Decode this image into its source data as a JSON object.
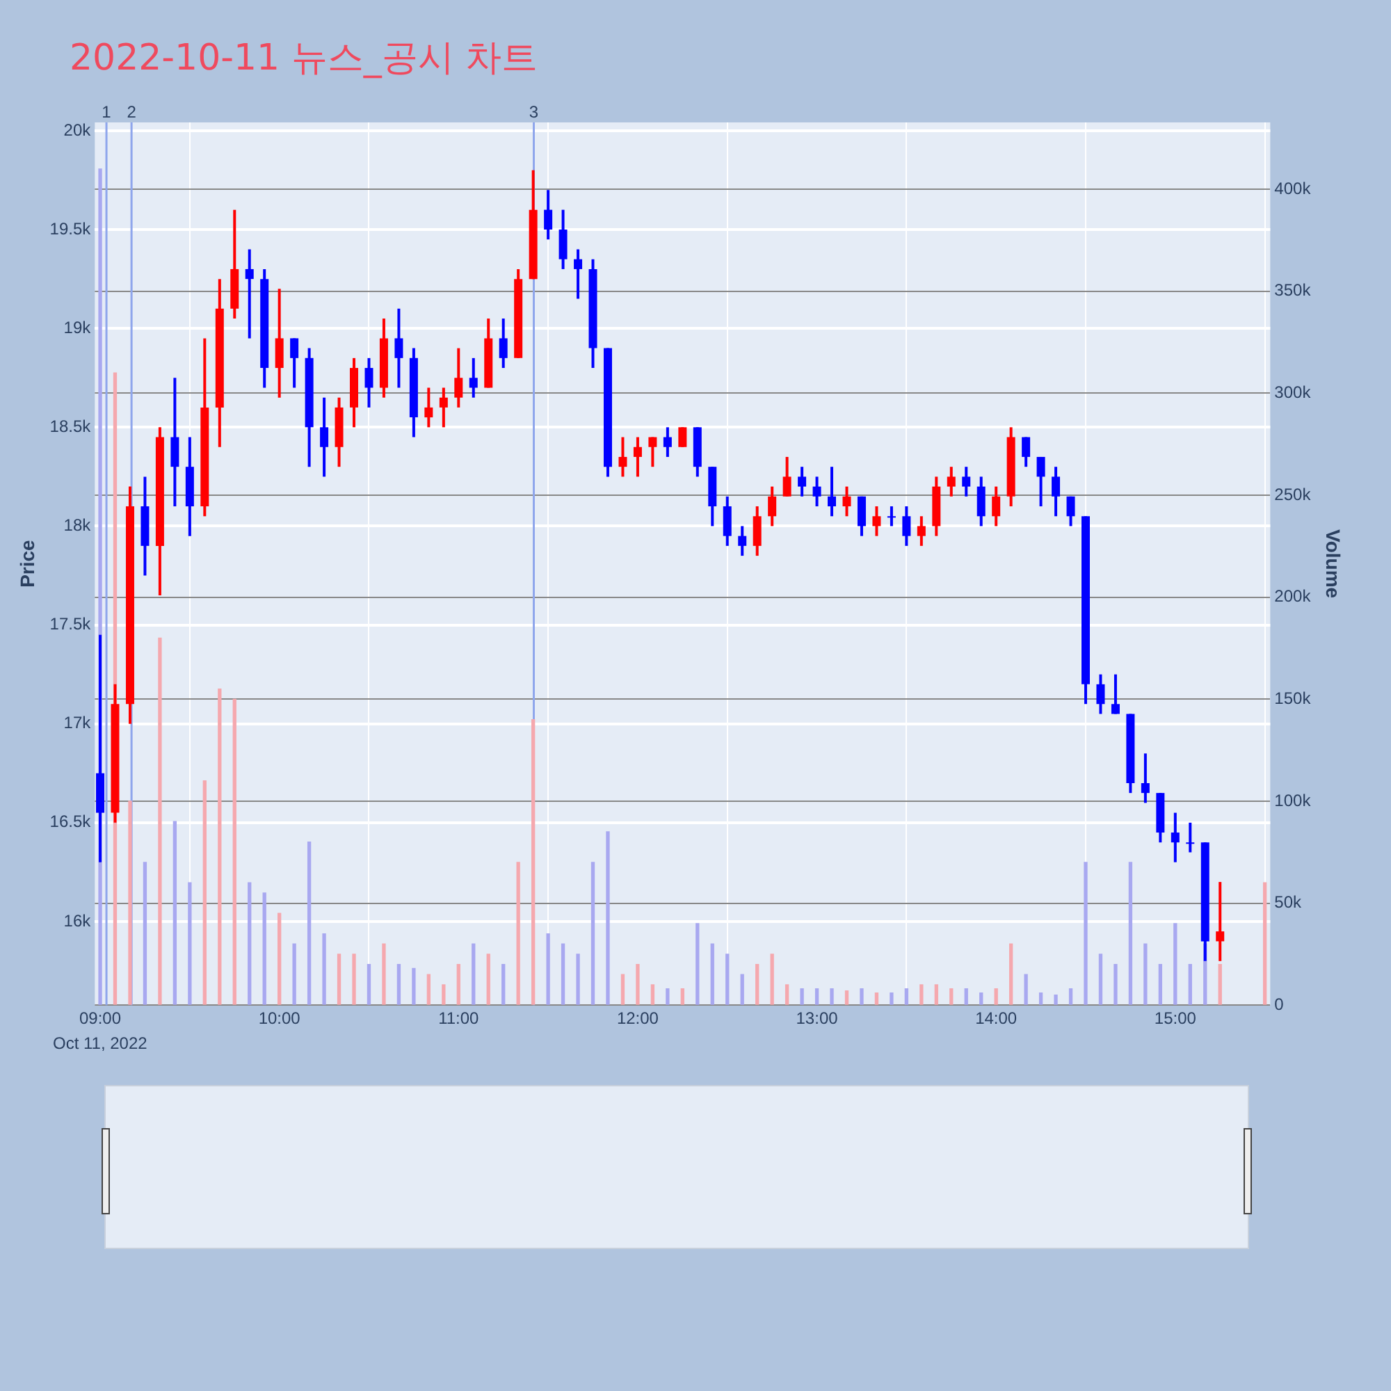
{
  "chart_data": {
    "type": "candlestick",
    "title": "2022-10-11 뉴스_공시 차트",
    "ylabel": "Price",
    "y2label": "Volume",
    "annotations": [
      "1",
      "2",
      "3",
      "Oct 11, 2022"
    ],
    "x": [
      9,
      9.0833,
      9.1667,
      9.25,
      9.3333,
      9.4167,
      9.5,
      9.5833,
      9.6667,
      9.75,
      9.8333,
      9.9167,
      10,
      10.0833,
      10.1667,
      10.25,
      10.3333,
      10.4167,
      10.5,
      10.5833,
      10.6667,
      10.75,
      10.8333,
      10.9167,
      11,
      11.0833,
      11.1667,
      11.25,
      11.3333,
      11.4167,
      11.5,
      11.5833,
      11.6667,
      11.75,
      11.8333,
      11.9167,
      12,
      12.0833,
      12.1667,
      12.25,
      12.3333,
      12.4167,
      12.5,
      12.5833,
      12.6667,
      12.75,
      12.8333,
      12.9167,
      13,
      13.0833,
      13.1667,
      13.25,
      13.3333,
      13.4167,
      13.5,
      13.5833,
      13.6667,
      13.75,
      13.8333,
      13.9167,
      14,
      14.0833,
      14.1667,
      14.25,
      14.3333,
      14.4167,
      14.5,
      14.5833,
      14.6667,
      14.75,
      14.8333,
      14.9167,
      15,
      15.0833,
      15.1667,
      15.25
    ],
    "series": [
      {
        "type": "candlestick",
        "colors": [
          "#0000ff",
          "#ff0000",
          "#ff0000",
          "#0000ff",
          "#ff0000",
          "#0000ff",
          "#0000ff",
          "#ff0000",
          "#ff0000",
          "#ff0000",
          "#0000ff",
          "#0000ff",
          "#ff0000",
          "#0000ff",
          "#0000ff",
          "#0000ff",
          "#ff0000",
          "#ff0000",
          "#0000ff",
          "#ff0000",
          "#0000ff",
          "#0000ff",
          "#ff0000",
          "#ff0000",
          "#ff0000",
          "#0000ff",
          "#ff0000",
          "#0000ff",
          "#ff0000",
          "#ff0000",
          "#0000ff",
          "#0000ff",
          "#0000ff",
          "#0000ff",
          "#0000ff",
          "#ff0000",
          "#ff0000",
          "#ff0000",
          "#0000ff",
          "#ff0000",
          "#0000ff",
          "#0000ff",
          "#0000ff",
          "#0000ff",
          "#ff0000",
          "#ff0000",
          "#ff0000",
          "#0000ff",
          "#0000ff",
          "#0000ff",
          "#ff0000",
          "#0000ff",
          "#ff0000",
          "#0000ff",
          "#0000ff",
          "#ff0000",
          "#ff0000",
          "#ff0000",
          "#0000ff",
          "#0000ff",
          "#ff0000",
          "#ff0000",
          "#0000ff",
          "#0000ff",
          "#0000ff",
          "#0000ff",
          "#0000ff",
          "#0000ff",
          "#0000ff",
          "#0000ff",
          "#0000ff",
          "#0000ff",
          "#0000ff",
          "#0000ff",
          "#0000ff",
          "#ff0000"
        ],
        "ohlc": [
          [
            16750,
            17450,
            16300,
            16550
          ],
          [
            16550,
            17200,
            16500,
            17100
          ],
          [
            17100,
            18200,
            17000,
            18100
          ],
          [
            18100,
            18250,
            17750,
            17900
          ],
          [
            17900,
            18500,
            17650,
            18450
          ],
          [
            18450,
            18750,
            18100,
            18300
          ],
          [
            18300,
            18450,
            17950,
            18100
          ],
          [
            18100,
            18950,
            18050,
            18600
          ],
          [
            18600,
            19250,
            18400,
            19100
          ],
          [
            19100,
            19600,
            19050,
            19300
          ],
          [
            19300,
            19400,
            18950,
            19250
          ],
          [
            19250,
            19300,
            18700,
            18800
          ],
          [
            18800,
            19200,
            18650,
            18950
          ],
          [
            18950,
            18950,
            18700,
            18850
          ],
          [
            18850,
            18900,
            18300,
            18500
          ],
          [
            18500,
            18650,
            18250,
            18400
          ],
          [
            18400,
            18650,
            18300,
            18600
          ],
          [
            18600,
            18850,
            18500,
            18800
          ],
          [
            18800,
            18850,
            18600,
            18700
          ],
          [
            18700,
            19050,
            18650,
            18950
          ],
          [
            18950,
            19100,
            18700,
            18850
          ],
          [
            18850,
            18900,
            18450,
            18550
          ],
          [
            18550,
            18700,
            18500,
            18600
          ],
          [
            18600,
            18700,
            18500,
            18650
          ],
          [
            18650,
            18900,
            18600,
            18750
          ],
          [
            18750,
            18850,
            18650,
            18700
          ],
          [
            18700,
            19050,
            18700,
            18950
          ],
          [
            18950,
            19050,
            18800,
            18850
          ],
          [
            18850,
            19300,
            18850,
            19250
          ],
          [
            19250,
            19800,
            19250,
            19600
          ],
          [
            19600,
            19700,
            19450,
            19500
          ],
          [
            19500,
            19600,
            19300,
            19350
          ],
          [
            19350,
            19400,
            19150,
            19300
          ],
          [
            19300,
            19350,
            18800,
            18900
          ],
          [
            18900,
            18900,
            18250,
            18300
          ],
          [
            18300,
            18450,
            18250,
            18350
          ],
          [
            18350,
            18450,
            18250,
            18400
          ],
          [
            18400,
            18450,
            18300,
            18450
          ],
          [
            18450,
            18500,
            18350,
            18400
          ],
          [
            18400,
            18500,
            18400,
            18500
          ],
          [
            18500,
            18500,
            18250,
            18300
          ],
          [
            18300,
            18300,
            18000,
            18100
          ],
          [
            18100,
            18150,
            17900,
            17950
          ],
          [
            17950,
            18000,
            17850,
            17900
          ],
          [
            17900,
            18100,
            17850,
            18050
          ],
          [
            18050,
            18200,
            18000,
            18150
          ],
          [
            18150,
            18350,
            18150,
            18250
          ],
          [
            18250,
            18300,
            18150,
            18200
          ],
          [
            18200,
            18250,
            18100,
            18150
          ],
          [
            18150,
            18300,
            18050,
            18100
          ],
          [
            18100,
            18200,
            18050,
            18150
          ],
          [
            18150,
            18150,
            17950,
            18000
          ],
          [
            18000,
            18100,
            17950,
            18050
          ],
          [
            18050,
            18100,
            18000,
            18050
          ],
          [
            18050,
            18100,
            17900,
            17950
          ],
          [
            17950,
            18050,
            17900,
            18000
          ],
          [
            18000,
            18250,
            17950,
            18200
          ],
          [
            18200,
            18300,
            18150,
            18250
          ],
          [
            18250,
            18300,
            18150,
            18200
          ],
          [
            18200,
            18250,
            18000,
            18050
          ],
          [
            18050,
            18200,
            18000,
            18150
          ],
          [
            18150,
            18500,
            18100,
            18450
          ],
          [
            18450,
            18450,
            18300,
            18350
          ],
          [
            18350,
            18350,
            18100,
            18250
          ],
          [
            18250,
            18300,
            18050,
            18150
          ],
          [
            18150,
            18150,
            18000,
            18050
          ],
          [
            18050,
            18050,
            17100,
            17200
          ],
          [
            17200,
            17250,
            17050,
            17100
          ],
          [
            17100,
            17250,
            17050,
            17050
          ],
          [
            17050,
            17050,
            16650,
            16700
          ],
          [
            16700,
            16850,
            16600,
            16650
          ],
          [
            16650,
            16650,
            16400,
            16450
          ],
          [
            16450,
            16550,
            16300,
            16400
          ],
          [
            16400,
            16500,
            16350,
            16400
          ],
          [
            16400,
            16400,
            15800,
            15900
          ],
          [
            15900,
            16200,
            15800,
            15950
          ]
        ]
      },
      {
        "type": "bar",
        "axis": "y2",
        "x": [
          9,
          9.0833,
          9.1667,
          9.25,
          9.3333,
          9.4167,
          9.5,
          9.5833,
          9.6667,
          9.75,
          9.8333,
          9.9167,
          10,
          10.0833,
          10.1667,
          10.25,
          10.3333,
          10.4167,
          10.5,
          10.5833,
          10.6667,
          10.75,
          10.8333,
          10.9167,
          11,
          11.0833,
          11.1667,
          11.25,
          11.3333,
          11.4167,
          11.5,
          11.5833,
          11.6667,
          11.75,
          11.8333,
          11.9167,
          12,
          12.0833,
          12.1667,
          12.25,
          12.3333,
          12.4167,
          12.5,
          12.5833,
          12.6667,
          12.75,
          12.8333,
          12.9167,
          13,
          13.0833,
          13.1667,
          13.25,
          13.3333,
          13.4167,
          13.5,
          13.5833,
          13.6667,
          13.75,
          13.8333,
          13.9167,
          14,
          14.0833,
          14.1667,
          14.25,
          14.3333,
          14.4167,
          14.5,
          14.5833,
          14.6667,
          14.75,
          14.8333,
          14.9167,
          15,
          15.0833,
          15.1667,
          15.25,
          15.5
        ],
        "values": [
          410000,
          310000,
          100000,
          70000,
          180000,
          90000,
          60000,
          110000,
          155000,
          150000,
          60000,
          55000,
          45000,
          30000,
          80000,
          35000,
          25000,
          25000,
          20000,
          30000,
          20000,
          18000,
          15000,
          10000,
          20000,
          30000,
          25000,
          20000,
          70000,
          140000,
          35000,
          30000,
          25000,
          70000,
          85000,
          15000,
          20000,
          10000,
          8000,
          8000,
          40000,
          30000,
          25000,
          15000,
          20000,
          25000,
          10000,
          8000,
          8000,
          8000,
          7000,
          8000,
          6000,
          6000,
          8000,
          10000,
          10000,
          8000,
          8000,
          6000,
          8000,
          30000,
          15000,
          6000,
          5000,
          8000,
          70000,
          25000,
          20000,
          70000,
          30000,
          20000,
          40000,
          20000,
          30000,
          20000,
          60000
        ],
        "colors": [
          "#a8a8f0",
          "#f5a8ae",
          "#f5a8ae",
          "#a8a8f0",
          "#f5a8ae",
          "#a8a8f0",
          "#a8a8f0",
          "#f5a8ae",
          "#f5a8ae",
          "#f5a8ae",
          "#a8a8f0",
          "#a8a8f0",
          "#f5a8ae",
          "#a8a8f0",
          "#a8a8f0",
          "#a8a8f0",
          "#f5a8ae",
          "#f5a8ae",
          "#a8a8f0",
          "#f5a8ae",
          "#a8a8f0",
          "#a8a8f0",
          "#f5a8ae",
          "#f5a8ae",
          "#f5a8ae",
          "#a8a8f0",
          "#f5a8ae",
          "#a8a8f0",
          "#f5a8ae",
          "#f5a8ae",
          "#a8a8f0",
          "#a8a8f0",
          "#a8a8f0",
          "#a8a8f0",
          "#a8a8f0",
          "#f5a8ae",
          "#f5a8ae",
          "#f5a8ae",
          "#a8a8f0",
          "#f5a8ae",
          "#a8a8f0",
          "#a8a8f0",
          "#a8a8f0",
          "#a8a8f0",
          "#f5a8ae",
          "#f5a8ae",
          "#f5a8ae",
          "#a8a8f0",
          "#a8a8f0",
          "#a8a8f0",
          "#f5a8ae",
          "#a8a8f0",
          "#f5a8ae",
          "#a8a8f0",
          "#a8a8f0",
          "#f5a8ae",
          "#f5a8ae",
          "#f5a8ae",
          "#a8a8f0",
          "#a8a8f0",
          "#f5a8ae",
          "#f5a8ae",
          "#a8a8f0",
          "#a8a8f0",
          "#a8a8f0",
          "#a8a8f0",
          "#a8a8f0",
          "#a8a8f0",
          "#a8a8f0",
          "#a8a8f0",
          "#a8a8f0",
          "#a8a8f0",
          "#a8a8f0",
          "#a8a8f0",
          "#a8a8f0",
          "#f5a8ae",
          "#f5a8ae"
        ]
      }
    ],
    "xlim": [
      8.97,
      15.53
    ],
    "xticks": [
      {
        "value": 9,
        "label": "09:00"
      },
      {
        "value": 10,
        "label": "10:00"
      },
      {
        "value": 11,
        "label": "11:00"
      },
      {
        "value": 12,
        "label": "12:00"
      },
      {
        "value": 13,
        "label": "13:00"
      },
      {
        "value": 14,
        "label": "14:00"
      },
      {
        "value": 15,
        "label": "15:00"
      }
    ],
    "ylim": [
      15577,
      20042
    ],
    "yticks": [
      {
        "value": 16000,
        "label": "16k"
      },
      {
        "value": 16500,
        "label": "16.5k"
      },
      {
        "value": 17000,
        "label": "17k"
      },
      {
        "value": 17500,
        "label": "17.5k"
      },
      {
        "value": 18000,
        "label": "18k"
      },
      {
        "value": 18500,
        "label": "18.5k"
      },
      {
        "value": 19000,
        "label": "19k"
      },
      {
        "value": 19500,
        "label": "19.5k"
      },
      {
        "value": 20000,
        "label": "20k"
      }
    ],
    "y2lim": [
      0,
      432800
    ],
    "y2ticks": [
      0,
      {
        "value": 50000,
        "label": "50k"
      },
      {
        "value": 100000,
        "label": "100k"
      },
      {
        "value": 150000,
        "label": "150k"
      },
      {
        "value": 200000,
        "label": "200k"
      },
      {
        "value": 250000,
        "label": "250k"
      },
      {
        "value": 300000,
        "label": "300k"
      },
      {
        "value": 350000,
        "label": "350k"
      },
      {
        "value": 400000,
        "label": "400k"
      }
    ],
    "ref_lines": [
      {
        "axis": "x",
        "value": 9.035,
        "color": "#8fa6ec"
      },
      {
        "axis": "x",
        "value": 9.175,
        "color": "#8fa6ec"
      },
      {
        "axis": "x",
        "value": 11.42,
        "color": "#8fa6ec"
      }
    ],
    "grid": true
  }
}
